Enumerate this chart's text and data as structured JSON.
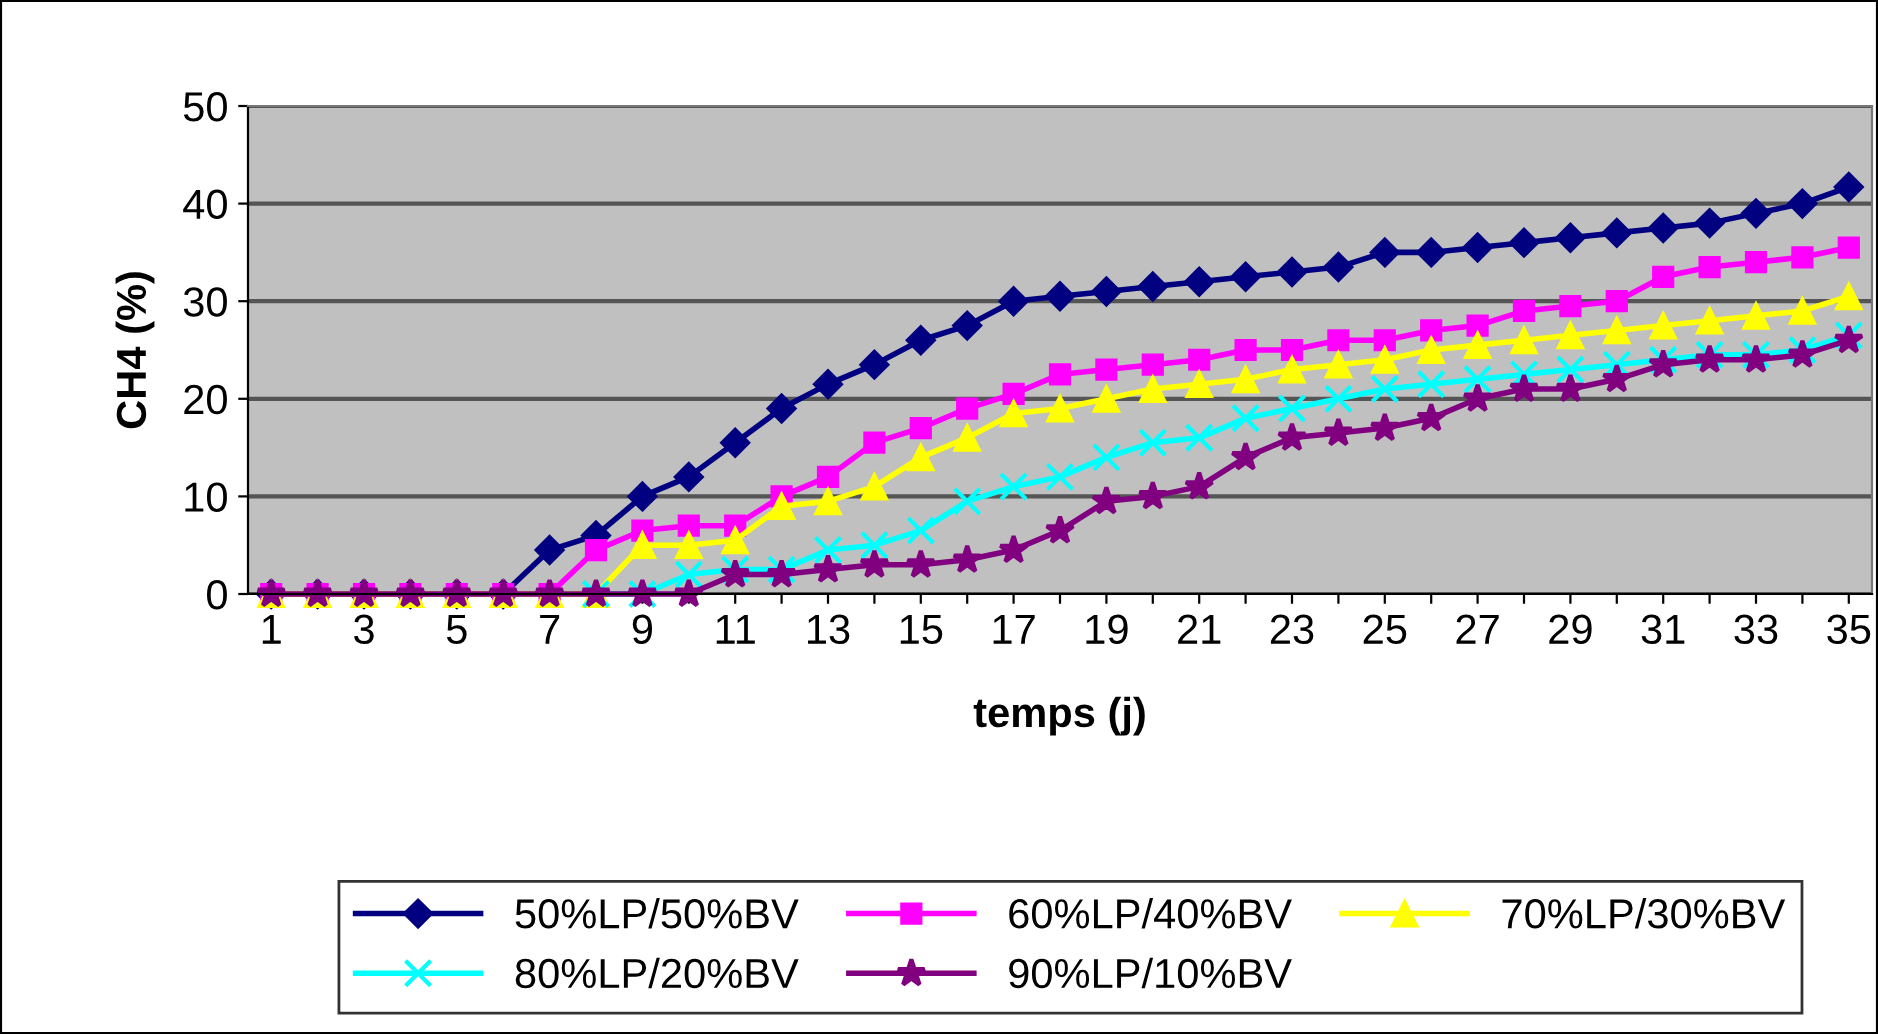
{
  "chart_data": {
    "type": "line",
    "xlabel": "temps (j)",
    "ylabel": "CH4 (%)",
    "categories": [
      "1",
      null,
      "3",
      null,
      "5",
      null,
      "7",
      null,
      "9",
      null,
      "11",
      null,
      "13",
      null,
      "15",
      null,
      "17",
      null,
      "19",
      null,
      "21",
      null,
      "23",
      null,
      "25",
      null,
      "27",
      null,
      "29",
      null,
      "31",
      null,
      "33",
      null,
      "35"
    ],
    "ylim": [
      0,
      50
    ],
    "yticks": [
      0,
      10,
      20,
      30,
      40,
      50
    ],
    "grid": "y",
    "legend": "bottom",
    "series": [
      {
        "name": "50%LP/50%BV",
        "color": "#000080",
        "marker": "diamond",
        "values": [
          0,
          0,
          0,
          0,
          0,
          0,
          4.5,
          6,
          10,
          12,
          15.5,
          19,
          21.5,
          23.5,
          26,
          27.5,
          30,
          30.5,
          31,
          31.5,
          32,
          32.5,
          33,
          33.5,
          35,
          35,
          35.5,
          36,
          36.5,
          37,
          37.5,
          38,
          39,
          40,
          41.7
        ]
      },
      {
        "name": "60%LP/40%BV",
        "color": "#ff00ff",
        "marker": "square",
        "values": [
          0,
          0,
          0,
          0,
          0,
          0,
          0,
          4.5,
          6.5,
          7,
          7,
          10,
          12,
          15.5,
          17,
          19,
          20.5,
          22.5,
          23,
          23.5,
          24,
          25,
          25,
          26,
          26,
          27,
          27.5,
          29,
          29.5,
          30,
          32.5,
          33.5,
          34,
          34.5,
          35.5
        ]
      },
      {
        "name": "70%LP/30%BV",
        "color": "#ffff00",
        "marker": "triangle",
        "values": [
          0,
          0,
          0,
          0,
          0,
          0,
          0,
          0,
          5,
          5,
          5.5,
          9,
          9.5,
          11,
          14,
          16,
          18.5,
          19,
          20,
          21,
          21.5,
          22,
          23,
          23.5,
          24,
          25,
          25.5,
          26,
          26.5,
          27,
          27.5,
          28,
          28.5,
          29,
          30.5
        ]
      },
      {
        "name": "80%LP/20%BV",
        "color": "#00ffff",
        "marker": "cross",
        "values": [
          null,
          null,
          null,
          null,
          null,
          null,
          null,
          0,
          0,
          2,
          2.5,
          2.5,
          4.5,
          5,
          6.5,
          9.5,
          11,
          12,
          14,
          15.5,
          16,
          18,
          19,
          20,
          21,
          21.5,
          22,
          22.5,
          23,
          23.5,
          24,
          24.5,
          24.5,
          25,
          26.5
        ]
      },
      {
        "name": "90%LP/10%BV",
        "color": "#800080",
        "marker": "star",
        "values": [
          0,
          0,
          0,
          0,
          0,
          0,
          0,
          0,
          0,
          0,
          2,
          2,
          2.5,
          3,
          3,
          3.5,
          4.5,
          6.5,
          9.5,
          10,
          11,
          14,
          16,
          16.5,
          17,
          18,
          20,
          21,
          21,
          22,
          23.5,
          24,
          24,
          24.5,
          26
        ]
      }
    ]
  }
}
